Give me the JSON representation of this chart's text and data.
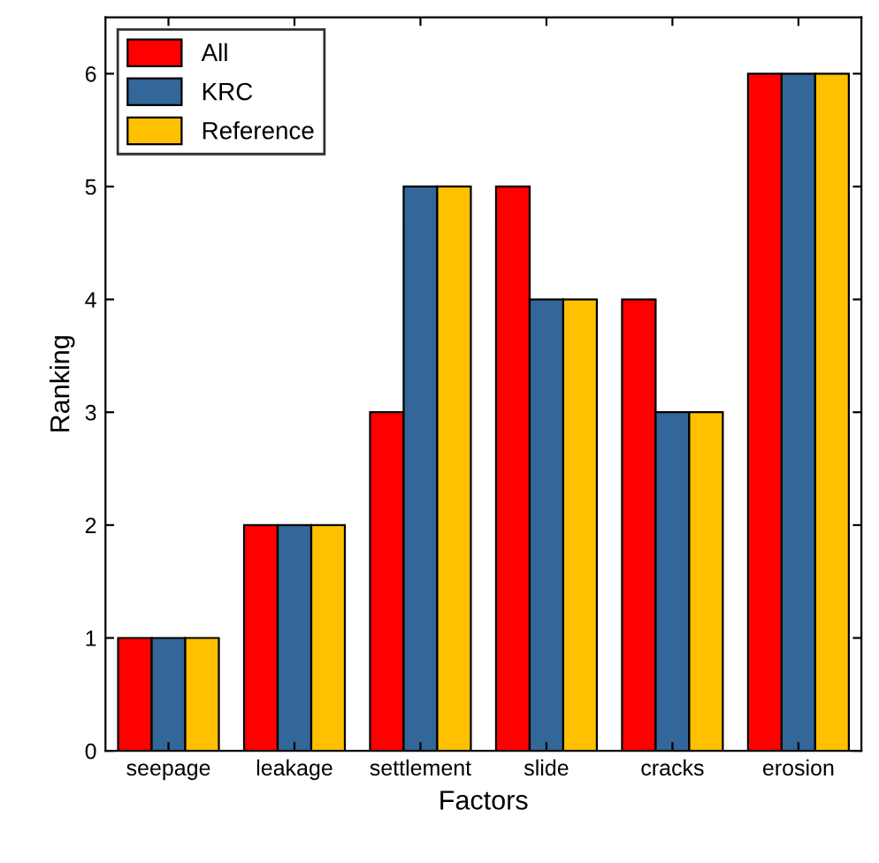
{
  "chart_data": {
    "type": "bar",
    "xlabel": "Factors",
    "ylabel": "Ranking",
    "categories": [
      "seepage",
      "leakage",
      "settlement",
      "slide",
      "cracks",
      "erosion"
    ],
    "series": [
      {
        "name": "All",
        "color": "#ff0000",
        "values": [
          1,
          2,
          3,
          5,
          4,
          6
        ]
      },
      {
        "name": "KRC",
        "color": "#336699",
        "values": [
          1,
          2,
          5,
          4,
          3,
          6
        ]
      },
      {
        "name": "Reference",
        "color": "#ffc000",
        "values": [
          1,
          2,
          5,
          4,
          3,
          6
        ]
      }
    ],
    "ylim": [
      0,
      6.5
    ],
    "yticks": [
      0,
      1,
      2,
      3,
      4,
      5,
      6
    ],
    "grid": false,
    "legend": "top left"
  }
}
